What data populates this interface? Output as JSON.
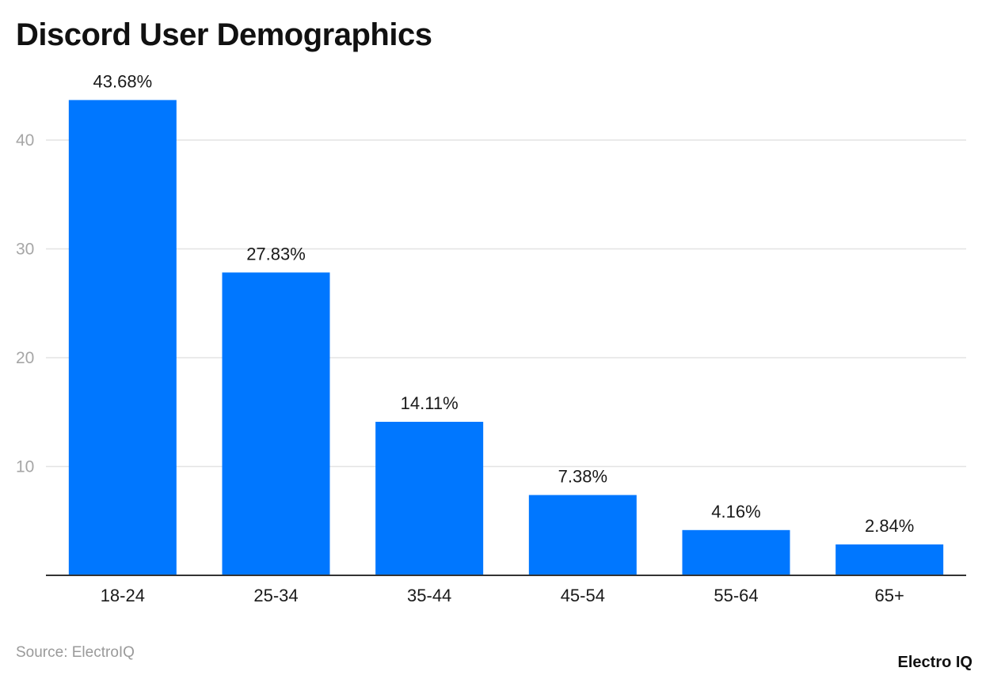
{
  "chart_data": {
    "type": "bar",
    "title": "Discord User Demographics",
    "categories": [
      "18-24",
      "25-34",
      "35-44",
      "45-54",
      "55-64",
      "65+"
    ],
    "values": [
      43.68,
      27.83,
      14.11,
      7.38,
      4.16,
      2.84
    ],
    "data_labels": [
      "43.68%",
      "27.83%",
      "14.11%",
      "7.38%",
      "4.16%",
      "2.84%"
    ],
    "xlabel": "",
    "ylabel": "",
    "ylim": [
      0,
      45
    ],
    "yticks": [
      10,
      20,
      30,
      40
    ],
    "grid": true,
    "bar_color": "#0077ff"
  },
  "footer": {
    "source": "Source: ElectroIQ",
    "brand": "Electro IQ"
  }
}
